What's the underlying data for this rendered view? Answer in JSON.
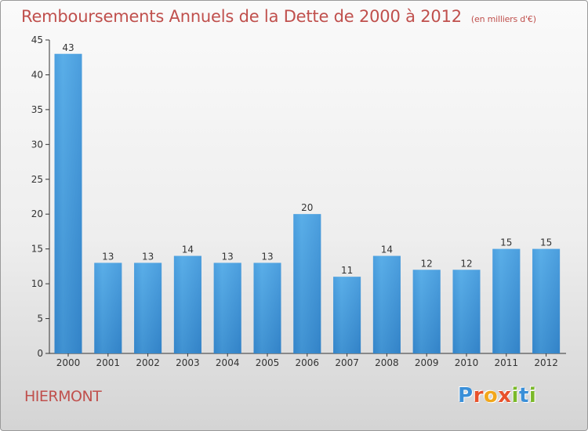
{
  "title": "Remboursements Annuels de la Dette de 2000 à 2012",
  "title_unit": "(en milliers d'€)",
  "town": "HIERMONT",
  "logo": {
    "text": "Proxiti",
    "letters": [
      "P",
      "r",
      "o",
      "x",
      "i",
      "t",
      "i"
    ],
    "colors": [
      "#3a8fd8",
      "#e8522c",
      "#f2a71b",
      "#e8522c",
      "#7ab929",
      "#3a8fd8",
      "#7ab929"
    ]
  },
  "chart_data": {
    "type": "bar",
    "categories": [
      "2000",
      "2001",
      "2002",
      "2003",
      "2004",
      "2005",
      "2006",
      "2007",
      "2008",
      "2009",
      "2010",
      "2011",
      "2012"
    ],
    "values": [
      43,
      13,
      13,
      14,
      13,
      13,
      20,
      11,
      14,
      12,
      12,
      15,
      15
    ],
    "value_labels": [
      "43",
      "13",
      "13",
      "14",
      "13",
      "13",
      "20",
      "11",
      "14",
      "12",
      "12",
      "15",
      "15"
    ],
    "ylim": [
      0,
      45
    ],
    "yticks": [
      "0",
      "5",
      "10",
      "15",
      "20",
      "25",
      "30",
      "35",
      "40",
      "45"
    ],
    "bar_color": "#4fa3e0",
    "grid": false
  }
}
